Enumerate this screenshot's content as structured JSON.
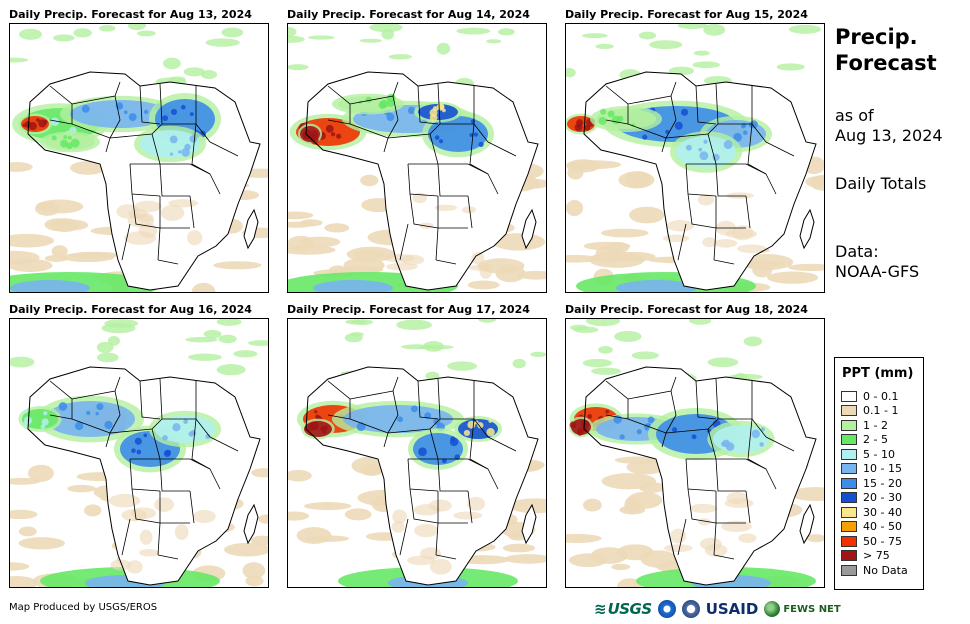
{
  "panels": [
    {
      "title": "Daily Precip. Forecast for Aug 13, 2024"
    },
    {
      "title": "Daily Precip. Forecast for Aug 14, 2024"
    },
    {
      "title": "Daily Precip. Forecast for Aug 15, 2024"
    },
    {
      "title": "Daily Precip. Forecast for Aug 16, 2024"
    },
    {
      "title": "Daily Precip. Forecast for Aug 17, 2024"
    },
    {
      "title": "Daily Precip. Forecast for Aug 18, 2024"
    }
  ],
  "side": {
    "title_line1": "Precip.",
    "title_line2": "Forecast",
    "asof_line1": "as of",
    "asof_line2": "Aug 13, 2024",
    "totals": "Daily Totals",
    "data_line1": "Data:",
    "data_line2": "NOAA-GFS"
  },
  "legend": {
    "title": "PPT (mm)",
    "items": [
      {
        "label": "0 - 0.1",
        "color": "#ffffff"
      },
      {
        "label": "0.1 - 1",
        "color": "#ecd9b8"
      },
      {
        "label": "1 - 2",
        "color": "#b4f0a0"
      },
      {
        "label": "2 - 5",
        "color": "#66e866"
      },
      {
        "label": "5 - 10",
        "color": "#b0f0f0"
      },
      {
        "label": "10 - 15",
        "color": "#78b4f0"
      },
      {
        "label": "15 - 20",
        "color": "#3c8ce8"
      },
      {
        "label": "20 - 30",
        "color": "#1450d2"
      },
      {
        "label": "30 - 40",
        "color": "#fae68c"
      },
      {
        "label": "40 - 50",
        "color": "#f5a000"
      },
      {
        "label": "50 - 75",
        "color": "#f03200"
      },
      {
        "label": "> 75",
        "color": "#a01414"
      },
      {
        "label": "No Data",
        "color": "#9a9a9a"
      }
    ]
  },
  "credit": "Map Produced by USGS/EROS",
  "logos": {
    "usgs": "USGS",
    "usaid": "USAID",
    "fews": "FEWS NET"
  }
}
